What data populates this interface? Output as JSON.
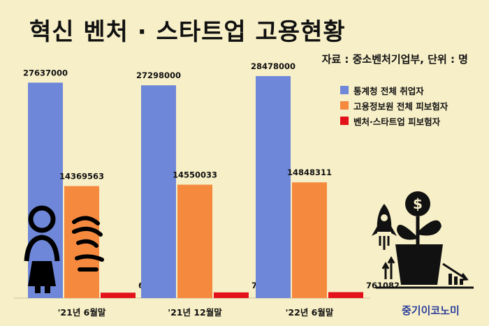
{
  "title": "혁신 벤처 · 스타트업 고용현황",
  "source": "자료 : 중소벤처기업부, 단위 : 명",
  "brand": "중기이코노미",
  "colors": {
    "background": "#f7efc7",
    "series1": "#6f87d9",
    "series2": "#f58a3f",
    "series3": "#e3111a"
  },
  "icons": [
    "person-thinking-icon",
    "growth-plant-icon",
    "rocket-icon"
  ],
  "chart_data": {
    "type": "bar",
    "categories": [
      "'21년 6월말",
      "'21년 12월말",
      "'22년 6월말"
    ],
    "series": [
      {
        "name": "통계청 전체 취업자",
        "values": [
          27637000,
          27298000,
          28478000
        ]
      },
      {
        "name": "고용정보원 전체 피보험자",
        "values": [
          14369563,
          14550033,
          14848311
        ]
      },
      {
        "name": "벤처·스타트업 피보험자",
        "values": [
          693477,
          728811,
          761082
        ]
      }
    ],
    "title": "혁신 벤처 · 스타트업 고용현황",
    "ylim": [
      0,
      30000000
    ],
    "grid": false,
    "legend": "top-right"
  }
}
